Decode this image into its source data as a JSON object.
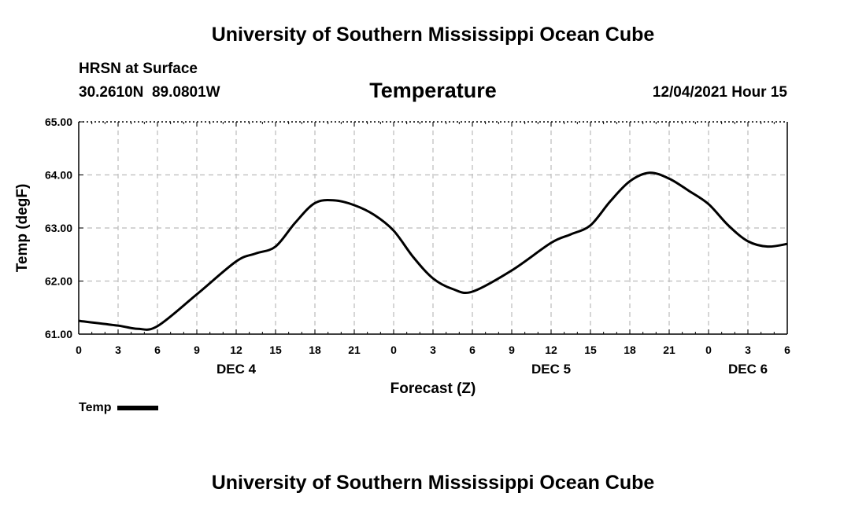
{
  "header": {
    "title": "University of Southern Mississippi Ocean Cube",
    "station": "HRSN at Surface",
    "coords": "30.2610N  89.0801W",
    "chart_title": "Temperature",
    "datetime": "12/04/2021 Hour 15"
  },
  "footer": {
    "title": "University of Southern Mississippi Ocean Cube"
  },
  "legend": {
    "label": "Temp"
  },
  "colors": {
    "line": "#000000",
    "grid": "#bbbbbb"
  },
  "chart_data": {
    "type": "line",
    "title": "Temperature",
    "xlabel": "Forecast (Z)",
    "ylabel": "Temp (degF)",
    "ylim": [
      61.0,
      65.0
    ],
    "xlim": [
      0,
      54
    ],
    "y_ticks": [
      "61.00",
      "62.00",
      "63.00",
      "64.00",
      "65.00"
    ],
    "y_tick_values": [
      61,
      62,
      63,
      64,
      65
    ],
    "x_tick_labels": [
      "0",
      "3",
      "6",
      "9",
      "12",
      "15",
      "18",
      "21",
      "0",
      "3",
      "6",
      "9",
      "12",
      "15",
      "18",
      "21",
      "0",
      "3",
      "6"
    ],
    "day_labels": [
      {
        "label": "DEC 4",
        "hour": 12
      },
      {
        "label": "DEC 5",
        "hour": 36
      },
      {
        "label": "DEC 6",
        "hour": 51
      }
    ],
    "grid": true,
    "series": [
      {
        "name": "Temp",
        "x": [
          0,
          3,
          4.5,
          6,
          9,
          12,
          13.5,
          15,
          16.5,
          18,
          19.5,
          21,
          22.5,
          24,
          25.5,
          27,
          28.5,
          30,
          33,
          36,
          37.5,
          39,
          40.5,
          42,
          43.5,
          45,
          46.5,
          48,
          49.5,
          51,
          52.5,
          54
        ],
        "y": [
          61.25,
          61.16,
          61.1,
          61.15,
          61.75,
          62.37,
          62.52,
          62.65,
          63.1,
          63.47,
          63.52,
          63.43,
          63.25,
          62.95,
          62.45,
          62.05,
          61.85,
          61.8,
          62.2,
          62.72,
          62.88,
          63.05,
          63.5,
          63.88,
          64.04,
          63.93,
          63.7,
          63.45,
          63.05,
          62.75,
          62.65,
          62.7
        ]
      }
    ]
  }
}
